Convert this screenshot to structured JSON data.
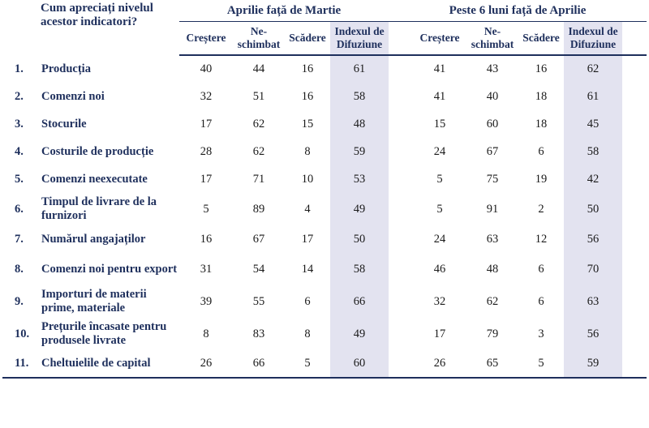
{
  "header": {
    "question": "Cum apreciați nivelul acestor indicatori?",
    "group1": "Aprilie față de Martie",
    "group2": "Peste 6 luni față de Aprilie",
    "cols": [
      "Creștere",
      "Ne-schimbat",
      "Scădere",
      "Indexul de Difuziune"
    ]
  },
  "rows": [
    {
      "num": "1.",
      "label": "Producția",
      "a": [
        "40",
        "44",
        "16",
        "61"
      ],
      "b": [
        "41",
        "43",
        "16",
        "62"
      ]
    },
    {
      "num": "2.",
      "label": "Comenzi noi",
      "a": [
        "32",
        "51",
        "16",
        "58"
      ],
      "b": [
        "41",
        "40",
        "18",
        "61"
      ]
    },
    {
      "num": "3.",
      "label": "Stocurile",
      "a": [
        "17",
        "62",
        "15",
        "48"
      ],
      "b": [
        "15",
        "60",
        "18",
        "45"
      ]
    },
    {
      "num": "4.",
      "label": "Costurile de producție",
      "a": [
        "28",
        "62",
        "8",
        "59"
      ],
      "b": [
        "24",
        "67",
        "6",
        "58"
      ]
    },
    {
      "num": "5.",
      "label": "Comenzi neexecutate",
      "a": [
        "17",
        "71",
        "10",
        "53"
      ],
      "b": [
        "5",
        "75",
        "19",
        "42"
      ]
    },
    {
      "num": "6.",
      "label": "Timpul de livrare de la furnizori",
      "a": [
        "5",
        "89",
        "4",
        "49"
      ],
      "b": [
        "5",
        "91",
        "2",
        "50"
      ]
    },
    {
      "num": "7.",
      "label": "Numărul angajaților",
      "a": [
        "16",
        "67",
        "17",
        "50"
      ],
      "b": [
        "24",
        "63",
        "12",
        "56"
      ]
    },
    {
      "num": "8.",
      "label": "Comenzi noi pentru export",
      "a": [
        "31",
        "54",
        "14",
        "58"
      ],
      "b": [
        "46",
        "48",
        "6",
        "70"
      ]
    },
    {
      "num": "9.",
      "label": "Importuri de materii prime, materiale",
      "a": [
        "39",
        "55",
        "6",
        "66"
      ],
      "b": [
        "32",
        "62",
        "6",
        "63"
      ]
    },
    {
      "num": "10.",
      "label": "Prețurile încasate pentru produsele livrate",
      "a": [
        "8",
        "83",
        "8",
        "49"
      ],
      "b": [
        "17",
        "79",
        "3",
        "56"
      ]
    },
    {
      "num": "11.",
      "label": "Cheltuielile de capital",
      "a": [
        "26",
        "66",
        "5",
        "60"
      ],
      "b": [
        "26",
        "65",
        "5",
        "59"
      ]
    }
  ]
}
